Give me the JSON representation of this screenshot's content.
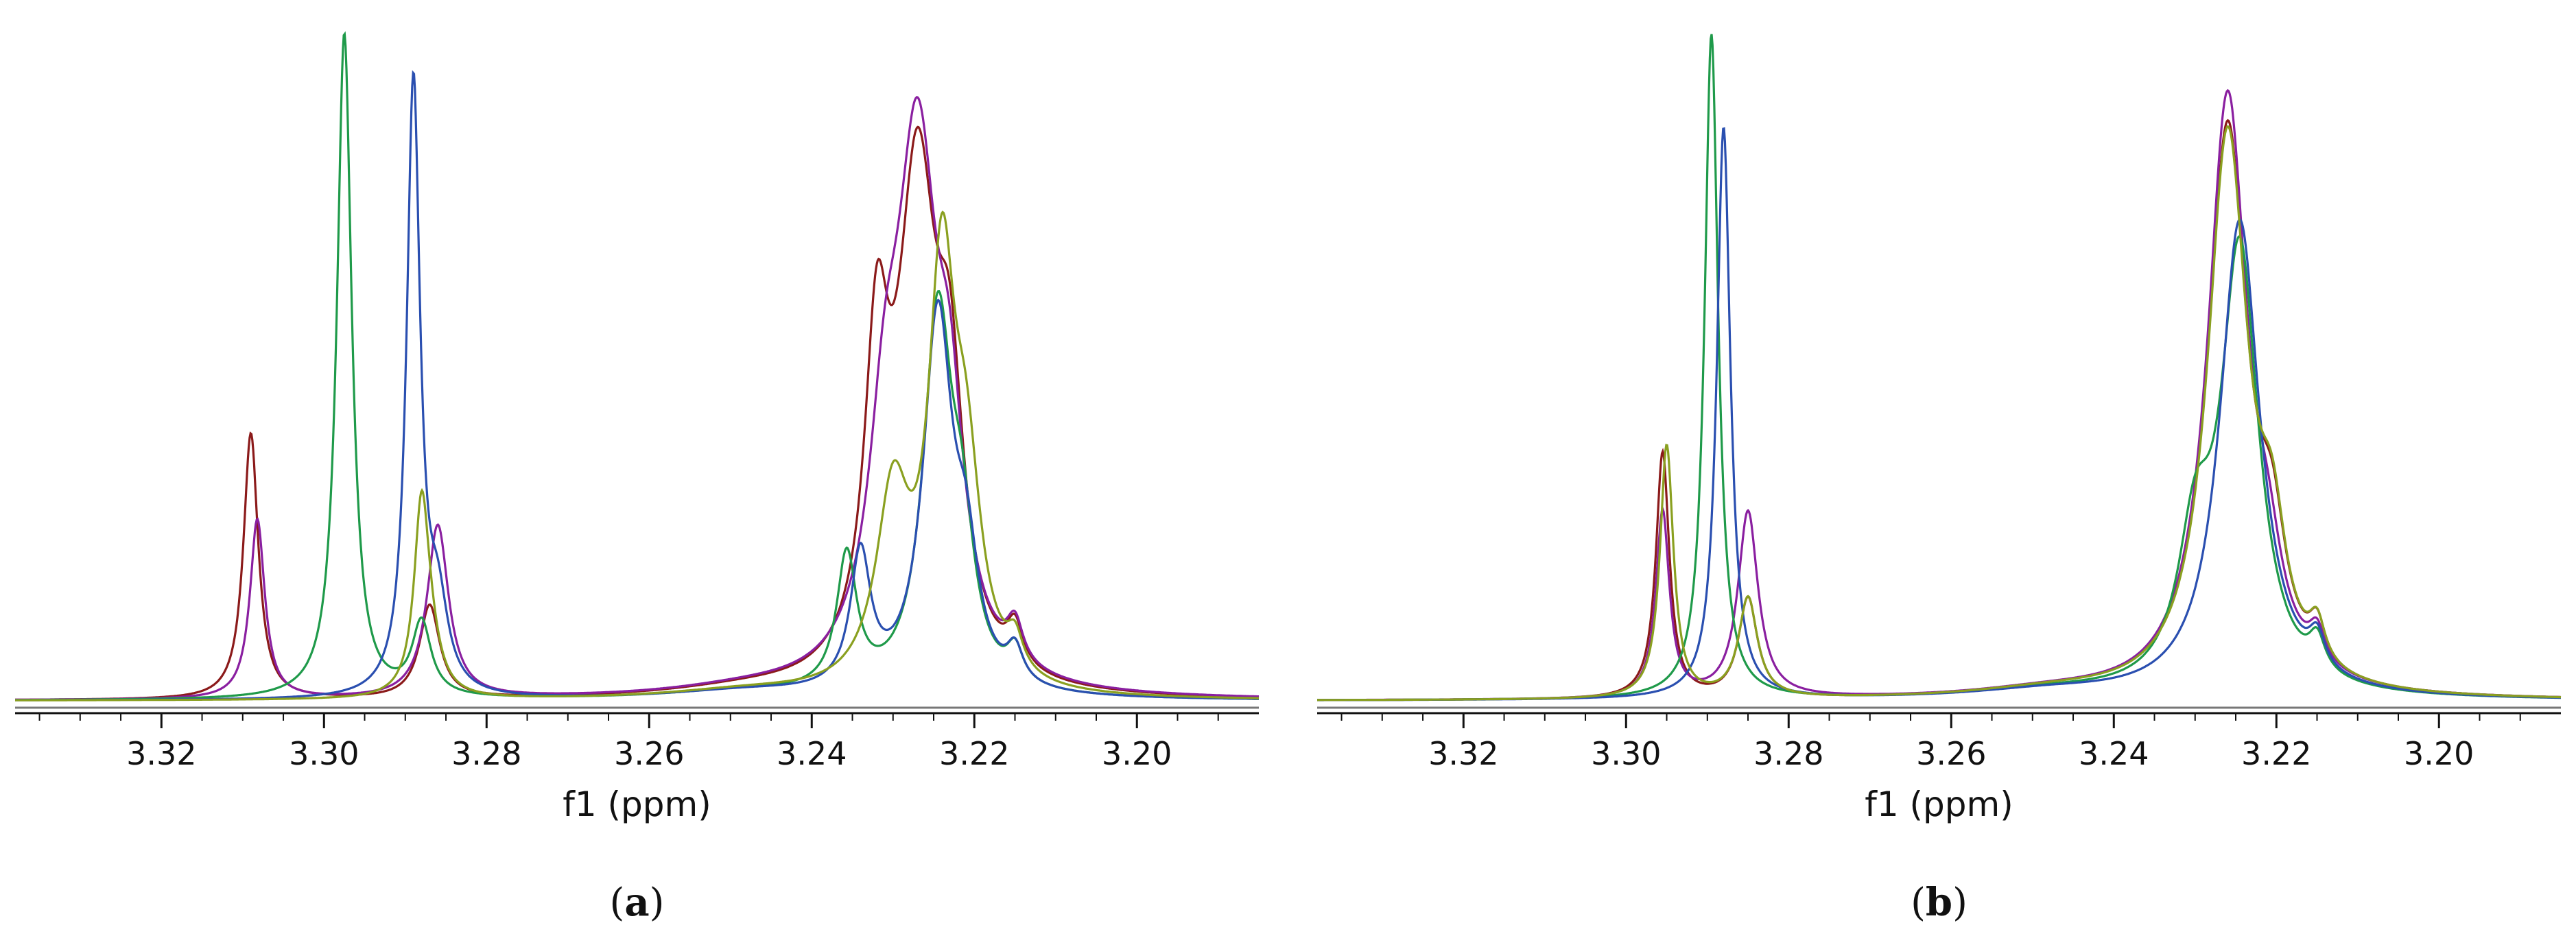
{
  "chart_data": [
    {
      "type": "line",
      "panel_label": "(a)",
      "xlabel": "f1 (ppm)",
      "ylabel": "",
      "x_reversed": true,
      "xlim": [
        3.338,
        3.185
      ],
      "ylim": [
        0,
        1.0
      ],
      "grid": false,
      "ticks": [
        3.32,
        3.3,
        3.28,
        3.26,
        3.24,
        3.22,
        3.2
      ],
      "tick_labels": [
        "3.32",
        "3.30",
        "3.28",
        "3.26",
        "3.24",
        "3.22",
        "3.20"
      ],
      "series": [
        {
          "color": "#8b1a1a",
          "baseline": 0.0,
          "peaks": [
            [
              3.309,
              0.4,
              0.0011
            ],
            [
              3.287,
              0.14,
              0.0015
            ],
            [
              3.232,
              0.44,
              0.0018
            ],
            [
              3.227,
              0.74,
              0.003
            ],
            [
              3.223,
              0.34,
              0.002
            ],
            [
              3.215,
              0.06,
              0.0012
            ]
          ]
        },
        {
          "color": "#8a1fa0",
          "baseline": 0.0,
          "peaks": [
            [
              3.3082,
              0.27,
              0.0011
            ],
            [
              3.286,
              0.26,
              0.0016
            ],
            [
              3.231,
              0.27,
              0.0024
            ],
            [
              3.227,
              0.78,
              0.0032
            ],
            [
              3.223,
              0.26,
              0.002
            ],
            [
              3.215,
              0.06,
              0.0012
            ]
          ]
        },
        {
          "color": "#1f9a4a",
          "baseline": 0.0,
          "peaks": [
            [
              3.2975,
              1.0,
              0.0011
            ],
            [
              3.288,
              0.11,
              0.0014
            ],
            [
              3.2357,
              0.2,
              0.0015
            ],
            [
              3.2245,
              0.56,
              0.0022
            ],
            [
              3.2215,
              0.18,
              0.0018
            ],
            [
              3.215,
              0.05,
              0.0012
            ]
          ]
        },
        {
          "color": "#2a4fb0",
          "baseline": 0.0,
          "peaks": [
            [
              3.289,
              0.92,
              0.001
            ],
            [
              3.286,
              0.12,
              0.0015
            ],
            [
              3.234,
              0.2,
              0.0015
            ],
            [
              3.2245,
              0.56,
              0.0022
            ],
            [
              3.221,
              0.16,
              0.0018
            ],
            [
              3.215,
              0.05,
              0.0012
            ]
          ]
        },
        {
          "color": "#8aa020",
          "baseline": 0.0,
          "peaks": [
            [
              3.288,
              0.27,
              0.0011
            ],
            [
              3.287,
              0.06,
              0.0016
            ],
            [
              3.23,
              0.28,
              0.0025
            ],
            [
              3.224,
              0.59,
              0.002
            ],
            [
              3.221,
              0.28,
              0.0022
            ],
            [
              3.215,
              0.05,
              0.0012
            ]
          ]
        }
      ]
    },
    {
      "type": "line",
      "panel_label": "(b)",
      "xlabel": "f1 (ppm)",
      "ylabel": "",
      "x_reversed": true,
      "xlim": [
        3.338,
        3.185
      ],
      "ylim": [
        0,
        1.0
      ],
      "grid": false,
      "ticks": [
        3.32,
        3.3,
        3.28,
        3.26,
        3.24,
        3.22,
        3.2
      ],
      "tick_labels": [
        "3.32",
        "3.30",
        "3.28",
        "3.26",
        "3.24",
        "3.22",
        "3.20"
      ],
      "series": [
        {
          "color": "#8b1a1a",
          "baseline": 0.0,
          "peaks": [
            [
              3.2955,
              0.37,
              0.001
            ],
            [
              3.285,
              0.15,
              0.0014
            ],
            [
              3.226,
              0.85,
              0.003
            ],
            [
              3.2205,
              0.16,
              0.002
            ],
            [
              3.215,
              0.06,
              0.0012
            ]
          ]
        },
        {
          "color": "#8a1fa0",
          "baseline": 0.0,
          "peaks": [
            [
              3.2955,
              0.28,
              0.001
            ],
            [
              3.285,
              0.28,
              0.0015
            ],
            [
              3.226,
              0.9,
              0.003
            ],
            [
              3.221,
              0.1,
              0.002
            ],
            [
              3.215,
              0.05,
              0.0012
            ]
          ]
        },
        {
          "color": "#1f9a4a",
          "baseline": 0.0,
          "peaks": [
            [
              3.2895,
              1.0,
              0.001
            ],
            [
              3.23,
              0.2,
              0.0025
            ],
            [
              3.2245,
              0.66,
              0.0028
            ],
            [
              3.215,
              0.05,
              0.0012
            ]
          ]
        },
        {
          "color": "#2a4fb0",
          "baseline": 0.0,
          "peaks": [
            [
              3.288,
              0.86,
              0.001
            ],
            [
              3.2245,
              0.72,
              0.003
            ],
            [
              3.215,
              0.05,
              0.0012
            ]
          ]
        },
        {
          "color": "#8aa020",
          "baseline": 0.0,
          "peaks": [
            [
              3.295,
              0.38,
              0.001
            ],
            [
              3.285,
              0.15,
              0.0014
            ],
            [
              3.226,
              0.84,
              0.003
            ],
            [
              3.2205,
              0.17,
              0.002
            ],
            [
              3.215,
              0.06,
              0.0012
            ]
          ]
        }
      ]
    }
  ]
}
